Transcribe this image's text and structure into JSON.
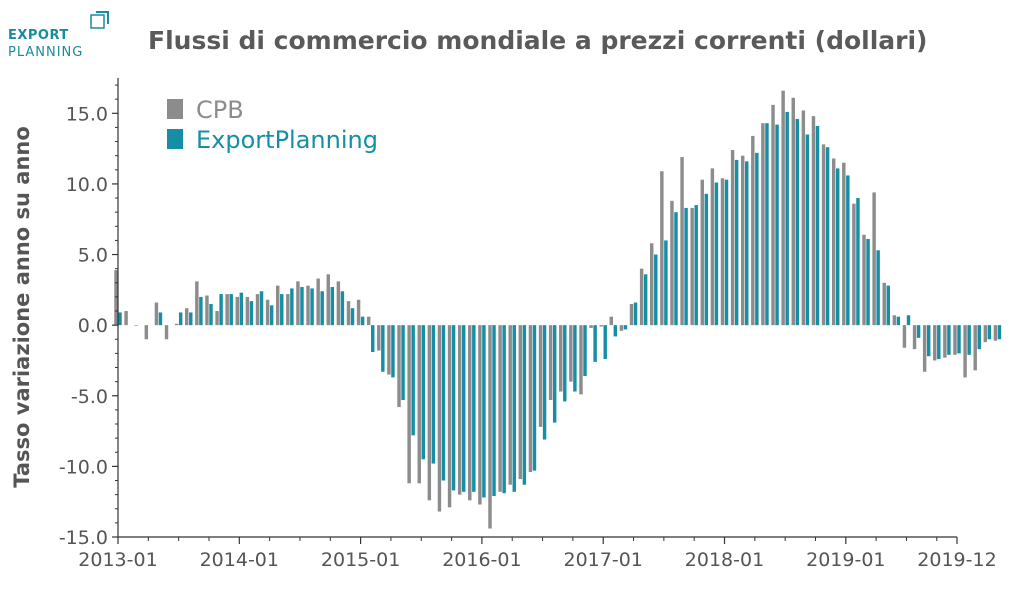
{
  "logo": {
    "line1": "EXPORT",
    "line2": "PLANNING",
    "name": "exportplanning-logo"
  },
  "title": "Flussi di commercio mondiale a prezzi correnti (dollari)",
  "colors": {
    "cpb": "#8c8c8c",
    "ep": "#168fa6",
    "text": "#555555",
    "axis": "#333333"
  },
  "chart_data": {
    "type": "bar",
    "title": "Flussi di commercio mondiale a prezzi correnti (dollari)",
    "xlabel": "",
    "ylabel": "Tasso variazione anno su anno",
    "ylim": [
      -15,
      17.5
    ],
    "yticks": [
      -15.0,
      -10.0,
      -5.0,
      0.0,
      5.0,
      10.0,
      15.0
    ],
    "ytick_labels": [
      "-15.0",
      "-10.0",
      "-5.0",
      "0.0",
      "5.0",
      "10.0",
      "15.0"
    ],
    "xticks": [
      "2013-01",
      "2014-01",
      "2015-01",
      "2016-01",
      "2017-01",
      "2018-01",
      "2019-01",
      "2019-12"
    ],
    "legend_position": "top-left",
    "grid": false,
    "start": "2013-01",
    "series": [
      {
        "name": "CPB",
        "values": [
          3.9,
          1.0,
          0.0,
          -1.0,
          1.6,
          -1.0,
          0.1,
          1.2,
          3.1,
          2.1,
          1.0,
          2.2,
          2.0,
          2.0,
          2.2,
          1.8,
          2.8,
          2.2,
          3.1,
          2.8,
          3.3,
          3.6,
          3.1,
          1.7,
          1.8,
          0.6,
          -1.8,
          -3.5,
          -5.8,
          -11.2,
          -11.2,
          -12.4,
          -13.2,
          -12.9,
          -12.0,
          -12.4,
          -12.7,
          -14.4,
          -11.8,
          -11.3,
          -10.9,
          -10.4,
          -7.2,
          -5.3,
          -4.7,
          -4.0,
          -4.9,
          -0.2,
          -0.1,
          0.6,
          -0.4,
          1.5,
          4.0,
          5.8,
          10.9,
          8.8,
          11.9,
          8.3,
          10.3,
          11.1,
          10.4,
          12.4,
          12.0,
          13.4,
          14.3,
          15.6,
          16.6,
          16.1,
          15.2,
          14.8,
          12.8,
          11.8,
          11.5,
          8.6,
          6.4,
          9.4,
          3.0,
          0.7,
          -1.6,
          -1.7,
          -3.3,
          -2.5,
          -2.3,
          -2.1,
          -3.7,
          -3.2,
          -1.2,
          -1.1
        ],
        "color": "#8c8c8c"
      },
      {
        "name": "ExportPlanning",
        "values": [
          0.9,
          null,
          null,
          null,
          0.9,
          null,
          0.9,
          0.9,
          2.0,
          1.5,
          2.2,
          2.2,
          2.3,
          1.7,
          2.4,
          1.4,
          2.2,
          2.6,
          2.7,
          2.6,
          2.4,
          2.7,
          2.4,
          1.2,
          0.6,
          -1.9,
          -3.3,
          -3.7,
          -5.3,
          -7.8,
          -9.5,
          -9.8,
          -11.0,
          -11.7,
          -11.8,
          -11.8,
          -12.2,
          -12.1,
          -11.9,
          -11.8,
          -11.3,
          -10.3,
          -8.1,
          -6.9,
          -5.4,
          -4.7,
          -3.6,
          -2.6,
          -2.4,
          -0.8,
          -0.3,
          1.6,
          3.6,
          5.0,
          6.0,
          8.0,
          8.3,
          8.5,
          9.3,
          10.1,
          10.3,
          11.7,
          11.6,
          12.2,
          14.3,
          14.2,
          15.1,
          14.6,
          13.5,
          14.1,
          12.6,
          11.1,
          10.6,
          9.0,
          6.1,
          5.3,
          2.8,
          0.6,
          0.7,
          -0.9,
          -2.2,
          -2.4,
          -2.1,
          -2.0,
          -2.1,
          -1.7,
          -1.0,
          -1.0
        ],
        "color": "#168fa6"
      }
    ]
  }
}
